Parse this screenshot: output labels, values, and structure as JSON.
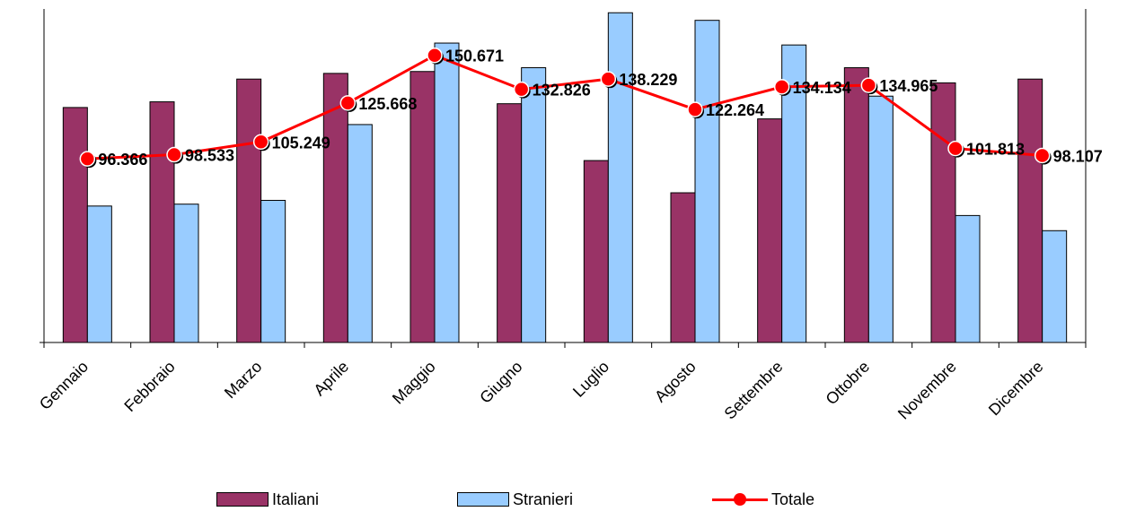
{
  "chart_data": {
    "type": "bar",
    "categories": [
      "Gennaio",
      "Febbraio",
      "Marzo",
      "Aprile",
      "Maggio",
      "Giugno",
      "Luglio",
      "Agosto",
      "Settembre",
      "Ottobre",
      "Novembre",
      "Dicembre"
    ],
    "series": [
      {
        "name": "Italiani",
        "type": "bar",
        "color": "#993366",
        "values": [
          62000,
          63500,
          69500,
          71000,
          71500,
          63000,
          48000,
          39500,
          59000,
          72500,
          68500,
          69500
        ]
      },
      {
        "name": "Stranieri",
        "type": "bar",
        "color": "#99CCFF",
        "values": [
          36000,
          36500,
          37500,
          57500,
          79000,
          72500,
          87000,
          85000,
          78500,
          65000,
          33500,
          29500
        ]
      },
      {
        "name": "Totale",
        "type": "line",
        "color": "#FF0000",
        "values": [
          96366,
          98533,
          105249,
          125668,
          150671,
          132826,
          138229,
          122264,
          134134,
          134965,
          101813,
          98107
        ]
      }
    ],
    "data_labels": [
      "96.366",
      "98.533",
      "105.249",
      "125.668",
      "150.671",
      "132.826",
      "138.229",
      "122.264",
      "134.134",
      "134.965",
      "101.813",
      "98.107"
    ],
    "title": "",
    "xlabel": "",
    "ylabel": "",
    "left_axis_range": [
      0,
      88000
    ],
    "right_axis_range": [
      0,
      175000
    ],
    "grid": false,
    "legend_position": "bottom"
  }
}
